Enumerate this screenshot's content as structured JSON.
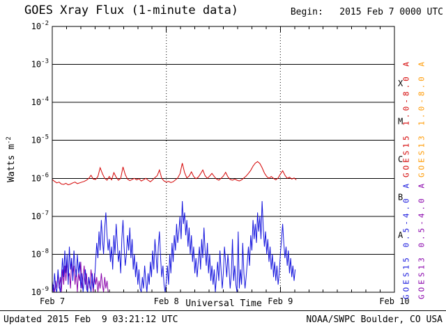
{
  "header": {
    "title": "GOES Xray Flux (1-minute data)",
    "begin": "Begin:   2015 Feb 7 0000 UTC"
  },
  "axes": {
    "x_label": "Universal Time",
    "y_label_base": "Watts m",
    "y_label_exponent": "-2"
  },
  "footer": {
    "updated": "Updated 2015 Feb  9 03:21:12 UTC",
    "source": "NOAA/SWPC Boulder, CO USA"
  },
  "chart_data": {
    "type": "line",
    "title": "GOES Xray Flux (1-minute data)",
    "xlabel": "Universal Time",
    "ylabel": "Watts m^-2",
    "grid": "horizontal solid per decade, dotted vertical at day boundaries",
    "x_axis": {
      "range_days": [
        0,
        3
      ],
      "minor_tick_hours": 3,
      "tick_labels": [
        {
          "label": "Feb 7",
          "day": 0
        },
        {
          "label": "Feb 8",
          "day": 1
        },
        {
          "label": "Feb 9",
          "day": 2
        },
        {
          "label": "Feb 10",
          "day": 3
        }
      ]
    },
    "y_axis": {
      "log_range": [
        -9,
        -2
      ],
      "tick_exponents": [
        -2,
        -3,
        -4,
        -5,
        -6,
        -7,
        -8,
        -9
      ]
    },
    "flare_classes": [
      {
        "label": "X",
        "log_center": -3.5
      },
      {
        "label": "M",
        "log_center": -4.5
      },
      {
        "label": "C",
        "log_center": -5.5
      },
      {
        "label": "B",
        "log_center": -6.5
      },
      {
        "label": "A",
        "log_center": -7.5
      }
    ],
    "legend_right": [
      {
        "label": "GOES15 1.0-8.0 A",
        "color": "#d40000"
      },
      {
        "label": "GOES13 1.0-8.0 A",
        "color": "#ff9900"
      },
      {
        "label": "GOES15 0.5-4.0 A",
        "color": "#1414dd"
      },
      {
        "label": "GOES13 0.5-4.0 A",
        "color": "#8800aa"
      }
    ],
    "series": [
      {
        "id": "goes13-long",
        "name": "GOES13 1.0-8.0 A",
        "color": "#ff9900",
        "t0": 0,
        "dt": 0.02,
        "log_flux": []
      },
      {
        "id": "goes13-short",
        "name": "GOES13 0.5-4.0 A",
        "color": "#8800aa",
        "t0": 0,
        "dt": 0.01,
        "log_flux": [
          -9.0,
          -8.8,
          -9.0,
          -8.7,
          -8.9,
          -8.5,
          -8.9,
          -8.6,
          -9.0,
          -8.4,
          -8.8,
          -8.3,
          -8.7,
          -8.2,
          -8.6,
          -8.5,
          -8.9,
          -8.1,
          -8.6,
          -8.3,
          -8.8,
          -8.4,
          -9.0,
          -8.5,
          -8.7,
          -8.2,
          -8.9,
          -8.6,
          -8.3,
          -8.8,
          -8.5,
          -9.0,
          -8.6,
          -8.9,
          -8.4,
          -8.7,
          -9.0,
          -8.5,
          -8.8,
          -8.6,
          -9.0,
          -8.7,
          -8.9,
          -8.5,
          -8.8,
          -9.0,
          -8.6,
          -8.9,
          -8.7,
          -9.0
        ]
      },
      {
        "id": "goes15-short",
        "name": "GOES15 0.5-4.0 A",
        "color": "#1414dd",
        "t0": 0,
        "dt": 0.01,
        "log_flux": [
          -8.7,
          -9.0,
          -8.5,
          -8.9,
          -9.0,
          -8.4,
          -8.8,
          -9.0,
          -8.6,
          -8.1,
          -8.6,
          -7.9,
          -8.5,
          -8.0,
          -8.8,
          -7.8,
          -8.4,
          -8.1,
          -8.7,
          -7.9,
          -8.3,
          -8.6,
          -8.0,
          -8.5,
          -8.2,
          -8.9,
          -8.5,
          -9.0,
          -8.7,
          -8.4,
          -8.9,
          -9.0,
          -8.6,
          -8.8,
          -9.0,
          -8.5,
          -8.9,
          -8.7,
          -8.2,
          -7.7,
          -8.1,
          -7.4,
          -7.9,
          -7.1,
          -7.6,
          -8.0,
          -7.3,
          -6.9,
          -7.5,
          -7.9,
          -7.6,
          -8.2,
          -7.8,
          -8.4,
          -7.5,
          -8.0,
          -7.2,
          -7.7,
          -8.2,
          -7.9,
          -8.5,
          -7.6,
          -7.1,
          -7.8,
          -8.3,
          -8.0,
          -7.5,
          -7.9,
          -7.3,
          -8.1,
          -7.6,
          -8.4,
          -8.0,
          -8.6,
          -8.2,
          -8.8,
          -8.4,
          -8.9,
          -9.0,
          -8.6,
          -8.9,
          -8.3,
          -8.7,
          -9.0,
          -8.5,
          -8.8,
          -8.2,
          -8.6,
          -7.9,
          -8.4,
          -7.6,
          -8.0,
          -8.5,
          -7.8,
          -7.4,
          -8.1,
          -8.6,
          -8.3,
          -8.8,
          -9.0,
          -8.7,
          -8.3,
          -8.8,
          -8.0,
          -8.5,
          -7.7,
          -8.2,
          -7.5,
          -7.9,
          -7.2,
          -7.7,
          -7.4,
          -7.0,
          -7.6,
          -6.6,
          -7.2,
          -6.9,
          -7.5,
          -7.1,
          -7.8,
          -7.3,
          -8.0,
          -7.5,
          -8.2,
          -7.8,
          -8.5,
          -8.1,
          -8.6,
          -8.2,
          -7.8,
          -8.4,
          -7.6,
          -8.1,
          -7.3,
          -7.9,
          -8.3,
          -7.7,
          -8.5,
          -8.0,
          -8.7,
          -8.3,
          -8.8,
          -8.4,
          -9.0,
          -8.6,
          -8.2,
          -8.7,
          -7.9,
          -8.4,
          -8.9,
          -8.5,
          -7.8,
          -8.2,
          -8.6,
          -8.0,
          -8.4,
          -8.9,
          -8.5,
          -7.6,
          -8.7,
          -8.3,
          -8.8,
          -9.0,
          -7.4,
          -8.9,
          -8.4,
          -8.8,
          -7.7,
          -8.5,
          -8.9,
          -8.6,
          -8.2,
          -7.8,
          -8.3,
          -7.5,
          -7.9,
          -7.1,
          -7.6,
          -7.2,
          -7.7,
          -6.9,
          -7.4,
          -7.0,
          -7.6,
          -6.6,
          -7.3,
          -7.8,
          -7.4,
          -8.0,
          -7.6,
          -8.2,
          -7.8,
          -8.4,
          -8.0,
          -8.6,
          -8.2,
          -8.7,
          -8.3,
          -8.8,
          -8.5,
          -8.0,
          -7.6,
          -7.2,
          -7.7,
          -8.1,
          -7.8,
          -8.3,
          -7.9,
          -8.5,
          -8.1,
          -8.6,
          -8.3,
          -8.7,
          -8.4
        ]
      },
      {
        "id": "goes15-long",
        "name": "GOES15 1.0-8.0 A",
        "color": "#d40000",
        "t0": 0,
        "dt": 0.02,
        "log_flux": [
          -6.03,
          -6.08,
          -6.12,
          -6.1,
          -6.15,
          -6.16,
          -6.13,
          -6.17,
          -6.15,
          -6.12,
          -6.1,
          -6.14,
          -6.12,
          -6.1,
          -6.08,
          -6.05,
          -6.0,
          -5.92,
          -6.02,
          -6.03,
          -5.95,
          -5.72,
          -5.88,
          -6.0,
          -6.05,
          -5.95,
          -6.04,
          -5.85,
          -5.97,
          -6.05,
          -6.0,
          -5.7,
          -5.9,
          -6.02,
          -6.06,
          -6.03,
          -6.0,
          -6.04,
          -6.01,
          -6.07,
          -6.04,
          -6.0,
          -6.05,
          -6.09,
          -6.04,
          -5.98,
          -5.93,
          -5.78,
          -6.0,
          -6.07,
          -6.1,
          -6.08,
          -6.11,
          -6.09,
          -6.04,
          -5.99,
          -5.88,
          -5.6,
          -5.85,
          -5.99,
          -5.94,
          -5.83,
          -5.95,
          -6.01,
          -5.97,
          -5.88,
          -5.78,
          -5.93,
          -6.0,
          -5.94,
          -5.87,
          -5.95,
          -6.02,
          -6.05,
          -6.0,
          -5.94,
          -5.84,
          -5.96,
          -6.03,
          -6.05,
          -6.02,
          -6.05,
          -6.07,
          -6.04,
          -5.99,
          -5.94,
          -5.87,
          -5.79,
          -5.68,
          -5.6,
          -5.56,
          -5.61,
          -5.72,
          -5.86,
          -5.95,
          -6.0,
          -5.95,
          -6.0,
          -6.04,
          -5.99,
          -5.89,
          -5.8,
          -5.92,
          -6.0,
          -5.97,
          -6.02,
          -5.99,
          -6.04
        ]
      }
    ]
  }
}
